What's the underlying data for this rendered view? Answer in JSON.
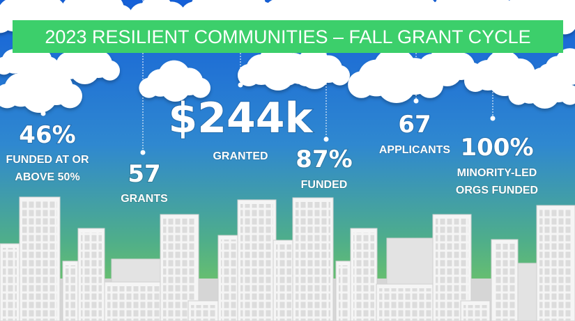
{
  "header": {
    "title": "2023 RESILIENT COMMUNITIES – FALL GRANT CYCLE"
  },
  "stats": [
    {
      "value": "46%",
      "label": [
        "FUNDED AT OR",
        "ABOVE 50%"
      ]
    },
    {
      "value": "57",
      "label": [
        "GRANTS"
      ]
    },
    {
      "value": "$244k",
      "label": [
        "GRANTED"
      ]
    },
    {
      "value": "87%",
      "label": [
        "FUNDED"
      ]
    },
    {
      "value": "67",
      "label": [
        "APPLICANTS"
      ]
    },
    {
      "value": "100%",
      "label": [
        "MINORITY-LED",
        "ORGS FUNDED"
      ]
    }
  ]
}
